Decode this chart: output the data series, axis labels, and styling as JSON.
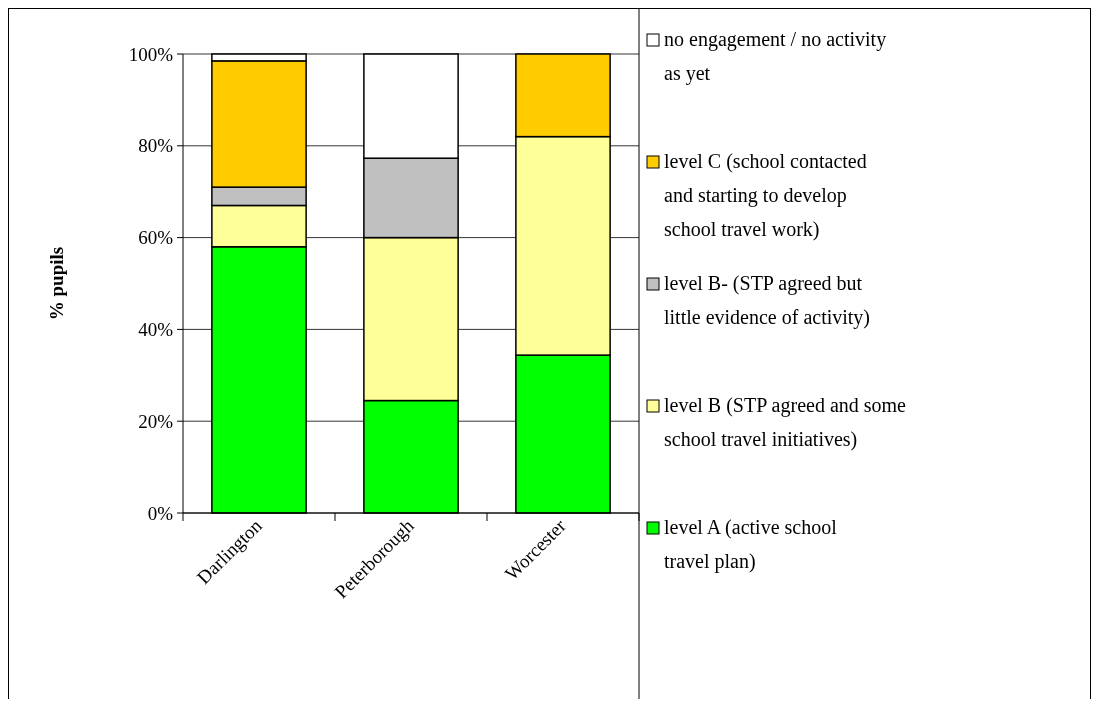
{
  "chart_data": {
    "type": "bar",
    "stacked": true,
    "ylabel": "% pupils",
    "categories": [
      "Darlington",
      "Peterborough",
      "Worcester"
    ],
    "series": [
      {
        "name": "level A (active school travel plan)",
        "color": "#00ff00",
        "values": [
          58,
          24.5,
          34.4
        ]
      },
      {
        "name": "level B (STP agreed and some school travel initiatives)",
        "color": "#ffff99",
        "values": [
          9,
          35.5,
          47.6
        ]
      },
      {
        "name": "level B- (STP agreed but little evidence of activity)",
        "color": "#c0c0c0",
        "values": [
          4,
          17.3,
          0
        ]
      },
      {
        "name": "level C (school contacted and starting to develop school travel work)",
        "color": "#ffcc00",
        "values": [
          27.5,
          0,
          18
        ]
      },
      {
        "name": "no engagement / no activity as yet",
        "color": "#ffffff",
        "values": [
          1.5,
          22.7,
          0
        ]
      }
    ],
    "ylim": [
      0,
      100
    ],
    "yticks": [
      {
        "value": 0,
        "label": "0%"
      },
      {
        "value": 20,
        "label": "20%"
      },
      {
        "value": 40,
        "label": "40%"
      },
      {
        "value": 60,
        "label": "60%"
      },
      {
        "value": 80,
        "label": "80%"
      },
      {
        "value": 100,
        "label": "100%"
      }
    ],
    "grid": "y",
    "legend": "right"
  }
}
